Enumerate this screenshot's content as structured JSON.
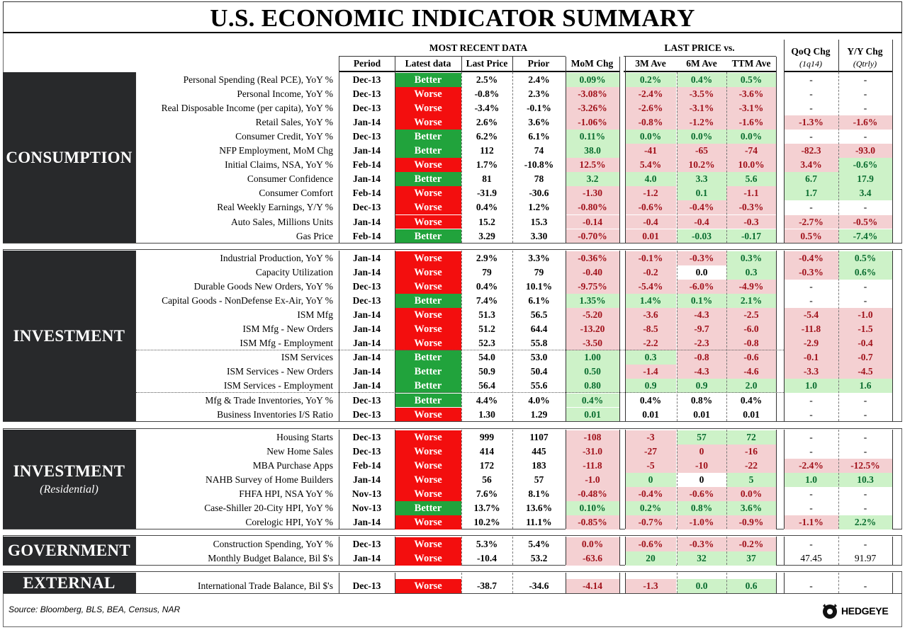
{
  "title": "U.S. ECONOMIC INDICATOR SUMMARY",
  "headers": {
    "most_recent": "MOST RECENT DATA",
    "last_price_vs": "LAST PRICE vs.",
    "period": "Period",
    "latest": "Latest data",
    "last_price": "Last Price",
    "prior": "Prior",
    "mom": "MoM Chg",
    "m3": "3M Ave",
    "m6": "6M Ave",
    "ttm": "TTM Ave",
    "qoq": "QoQ Chg",
    "qoq_sub": "(1q14)",
    "yy": "Y/Y Chg",
    "yy_sub": "(Qtrly)"
  },
  "colors": {
    "better": "#21a33c",
    "worse": "#f30e0e",
    "positive_bg": "#cdf2c8",
    "negative_bg": "#f4d0d2",
    "section_bg": "#28292b"
  },
  "sections": [
    {
      "name": "CONSUMPTION",
      "sub": ""
    },
    {
      "name": "INVESTMENT",
      "sub": ""
    },
    {
      "name": "INVESTMENT",
      "sub": "(Residential)"
    },
    {
      "name": "GOVERNMENT",
      "sub": ""
    },
    {
      "name": "EXTERNAL",
      "sub": ""
    }
  ],
  "rows": [
    {
      "name": "Personal Spending (Real PCE), YoY %",
      "period": "Dec-13",
      "status": "Better",
      "last": "2.5%",
      "prior": "2.4%",
      "mom": "0.09%",
      "m3": "0.2%",
      "m6": "0.4%",
      "ttm": "0.5%",
      "qoq": "-",
      "yy": "-"
    },
    {
      "name": "Personal Income, YoY %",
      "period": "Dec-13",
      "status": "Worse",
      "last": "-0.8%",
      "prior": "2.3%",
      "mom": "-3.08%",
      "m3": "-2.4%",
      "m6": "-3.5%",
      "ttm": "-3.6%",
      "qoq": "-",
      "yy": "-"
    },
    {
      "name": "Real Disposable Income (per capita), YoY %",
      "period": "Dec-13",
      "status": "Worse",
      "last": "-3.4%",
      "prior": "-0.1%",
      "mom": "-3.26%",
      "m3": "-2.6%",
      "m6": "-3.1%",
      "ttm": "-3.1%",
      "qoq": "-",
      "yy": "-"
    },
    {
      "name": "Retail Sales, YoY %",
      "period": "Jan-14",
      "status": "Worse",
      "last": "2.6%",
      "prior": "3.6%",
      "mom": "-1.06%",
      "m3": "-0.8%",
      "m6": "-1.2%",
      "ttm": "-1.6%",
      "qoq": "-1.3%",
      "yy": "-1.6%"
    },
    {
      "name": "Consumer Credit, YoY %",
      "period": "Dec-13",
      "status": "Better",
      "last": "6.2%",
      "prior": "6.1%",
      "mom": "0.11%",
      "m3": "0.0%",
      "m6": "0.0%",
      "ttm": "0.0%",
      "qoq": "-",
      "yy": "-"
    },
    {
      "name": "NFP Employment, MoM Chg",
      "period": "Jan-14",
      "status": "Better",
      "last": "112",
      "prior": "74",
      "mom": "38.0",
      "m3": "-41",
      "m6": "-65",
      "ttm": "-74",
      "qoq": "-82.3",
      "yy": "-93.0"
    },
    {
      "name": "Initial Claims, NSA, YoY %",
      "period": "Feb-14",
      "status": "Worse",
      "last": "1.7%",
      "prior": "-10.8%",
      "mom": "12.5%",
      "m3": "5.4%",
      "m6": "10.2%",
      "ttm": "10.0%",
      "qoq": "3.4%",
      "yy": "-0.6%"
    },
    {
      "name": "Consumer Confidence",
      "period": "Jan-14",
      "status": "Better",
      "last": "81",
      "prior": "78",
      "mom": "3.2",
      "m3": "4.0",
      "m6": "3.3",
      "ttm": "5.6",
      "qoq": "6.7",
      "yy": "17.9"
    },
    {
      "name": "Consumer Comfort",
      "period": "Feb-14",
      "status": "Worse",
      "last": "-31.9",
      "prior": "-30.6",
      "mom": "-1.30",
      "m3": "-1.2",
      "m6": "0.1",
      "ttm": "-1.1",
      "qoq": "1.7",
      "yy": "3.4"
    },
    {
      "name": "Real Weekly Earnings, Y/Y %",
      "period": "Dec-13",
      "status": "Worse",
      "last": "0.4%",
      "prior": "1.2%",
      "mom": "-0.80%",
      "m3": "-0.6%",
      "m6": "-0.4%",
      "ttm": "-0.3%",
      "qoq": "-",
      "yy": "-"
    },
    {
      "name": "Auto Sales, Millions Units",
      "period": "Jan-14",
      "status": "Worse",
      "last": "15.2",
      "prior": "15.3",
      "mom": "-0.14",
      "m3": "-0.4",
      "m6": "-0.4",
      "ttm": "-0.3",
      "qoq": "-2.7%",
      "yy": "-0.5%"
    },
    {
      "name": "Gas Price",
      "period": "Feb-14",
      "status": "Better",
      "last": "3.29",
      "prior": "3.30",
      "mom": "-0.70%",
      "m3": "0.01",
      "m6": "-0.03",
      "ttm": "-0.17",
      "qoq": "0.5%",
      "yy": "-7.4%"
    },
    {
      "name": "Industrial Production, YoY %",
      "period": "Jan-14",
      "status": "Worse",
      "last": "2.9%",
      "prior": "3.3%",
      "mom": "-0.36%",
      "m3": "-0.1%",
      "m6": "-0.3%",
      "ttm": "0.3%",
      "qoq": "-0.4%",
      "yy": "0.5%"
    },
    {
      "name": "Capacity Utilization",
      "period": "Jan-14",
      "status": "Worse",
      "last": "79",
      "prior": "79",
      "mom": "-0.40",
      "m3": "-0.2",
      "m6": "0.0",
      "ttm": "0.3",
      "qoq": "-0.3%",
      "yy": "0.6%"
    },
    {
      "name": "Durable Goods New Orders, YoY %",
      "period": "Dec-13",
      "status": "Worse",
      "last": "0.4%",
      "prior": "10.1%",
      "mom": "-9.75%",
      "m3": "-5.4%",
      "m6": "-6.0%",
      "ttm": "-4.9%",
      "qoq": "-",
      "yy": "-"
    },
    {
      "name": "Capital Goods - NonDefense Ex-Air, YoY %",
      "period": "Dec-13",
      "status": "Better",
      "last": "7.4%",
      "prior": "6.1%",
      "mom": "1.35%",
      "m3": "1.4%",
      "m6": "0.1%",
      "ttm": "2.1%",
      "qoq": "-",
      "yy": "-"
    },
    {
      "name": "ISM Mfg",
      "period": "Jan-14",
      "status": "Worse",
      "last": "51.3",
      "prior": "56.5",
      "mom": "-5.20",
      "m3": "-3.6",
      "m6": "-4.3",
      "ttm": "-2.5",
      "qoq": "-5.4",
      "yy": "-1.0"
    },
    {
      "name": "ISM Mfg - New Orders",
      "period": "Jan-14",
      "status": "Worse",
      "last": "51.2",
      "prior": "64.4",
      "mom": "-13.20",
      "m3": "-8.5",
      "m6": "-9.7",
      "ttm": "-6.0",
      "qoq": "-11.8",
      "yy": "-1.5"
    },
    {
      "name": "ISM Mfg - Employment",
      "period": "Jan-14",
      "status": "Worse",
      "last": "52.3",
      "prior": "55.8",
      "mom": "-3.50",
      "m3": "-2.2",
      "m6": "-2.3",
      "ttm": "-0.8",
      "qoq": "-2.9",
      "yy": "-0.4"
    },
    {
      "name": "ISM Services",
      "period": "Jan-14",
      "status": "Better",
      "last": "54.0",
      "prior": "53.0",
      "mom": "1.00",
      "m3": "0.3",
      "m6": "-0.8",
      "ttm": "-0.6",
      "qoq": "-0.1",
      "yy": "-0.7"
    },
    {
      "name": "ISM Services - New Orders",
      "period": "Jan-14",
      "status": "Better",
      "last": "50.9",
      "prior": "50.4",
      "mom": "0.50",
      "m3": "-1.4",
      "m6": "-4.3",
      "ttm": "-4.6",
      "qoq": "-3.3",
      "yy": "-4.5"
    },
    {
      "name": "ISM Services - Employment",
      "period": "Jan-14",
      "status": "Better",
      "last": "56.4",
      "prior": "55.6",
      "mom": "0.80",
      "m3": "0.9",
      "m6": "0.9",
      "ttm": "2.0",
      "qoq": "1.0",
      "yy": "1.6"
    },
    {
      "name": "Mfg & Trade Inventories, YoY %",
      "period": "Dec-13",
      "status": "Better",
      "last": "4.4%",
      "prior": "4.0%",
      "mom": "0.4%",
      "m3": "0.4%",
      "m6": "0.8%",
      "ttm": "0.4%",
      "qoq": "-",
      "yy": "-"
    },
    {
      "name": "Business Inventories I/S Ratio",
      "period": "Dec-13",
      "status": "Worse",
      "last": "1.30",
      "prior": "1.29",
      "mom": "0.01",
      "m3": "0.01",
      "m6": "0.01",
      "ttm": "0.01",
      "qoq": "-",
      "yy": "-"
    },
    {
      "name": "Housing Starts",
      "period": "Dec-13",
      "status": "Worse",
      "last": "999",
      "prior": "1107",
      "mom": "-108",
      "m3": "-3",
      "m6": "57",
      "ttm": "72",
      "qoq": "-",
      "yy": "-"
    },
    {
      "name": "New Home Sales",
      "period": "Dec-13",
      "status": "Worse",
      "last": "414",
      "prior": "445",
      "mom": "-31.0",
      "m3": "-27",
      "m6": "0",
      "ttm": "-16",
      "qoq": "-",
      "yy": "-"
    },
    {
      "name": "MBA Purchase Apps",
      "period": "Feb-14",
      "status": "Worse",
      "last": "172",
      "prior": "183",
      "mom": "-11.8",
      "m3": "-5",
      "m6": "-10",
      "ttm": "-22",
      "qoq": "-2.4%",
      "yy": "-12.5%"
    },
    {
      "name": "NAHB Survey of Home Builders",
      "period": "Jan-14",
      "status": "Worse",
      "last": "56",
      "prior": "57",
      "mom": "-1.0",
      "m3": "0",
      "m6": "0",
      "ttm": "5",
      "qoq": "1.0",
      "yy": "10.3"
    },
    {
      "name": "FHFA HPI, NSA YoY %",
      "period": "Nov-13",
      "status": "Worse",
      "last": "7.6%",
      "prior": "8.1%",
      "mom": "-0.48%",
      "m3": "-0.4%",
      "m6": "-0.6%",
      "ttm": "0.0%",
      "qoq": "-",
      "yy": "-"
    },
    {
      "name": "Case-Shiller 20-City HPI, YoY %",
      "period": "Nov-13",
      "status": "Better",
      "last": "13.7%",
      "prior": "13.6%",
      "mom": "0.10%",
      "m3": "0.2%",
      "m6": "0.8%",
      "ttm": "3.6%",
      "qoq": "-",
      "yy": "-"
    },
    {
      "name": "Corelogic HPI, YoY %",
      "period": "Jan-14",
      "status": "Worse",
      "last": "10.2%",
      "prior": "11.1%",
      "mom": "-0.85%",
      "m3": "-0.7%",
      "m6": "-1.0%",
      "ttm": "-0.9%",
      "qoq": "-1.1%",
      "yy": "2.2%"
    },
    {
      "name": "Construction Spending, YoY %",
      "period": "Dec-13",
      "status": "Worse",
      "last": "5.3%",
      "prior": "5.4%",
      "mom": "0.0%",
      "m3": "-0.6%",
      "m6": "-0.3%",
      "ttm": "-0.2%",
      "qoq": "-",
      "yy": "-"
    },
    {
      "name": "Monthly Budget Balance, Bil $'s",
      "period": "Jan-14",
      "status": "Worse",
      "last": "-10.4",
      "prior": "53.2",
      "mom": "-63.6",
      "m3": "20",
      "m6": "32",
      "ttm": "37",
      "qoq": "47.45",
      "yy": "91.97"
    },
    {
      "name": "International Trade Balance, Bil $'s",
      "period": "Dec-13",
      "status": "Worse",
      "last": "-38.7",
      "prior": "-34.6",
      "mom": "-4.14",
      "m3": "-1.3",
      "m6": "0.0",
      "ttm": "0.6",
      "qoq": "-",
      "yy": "-"
    }
  ],
  "styles": [
    {
      "mom": "pos",
      "m3": "pos",
      "m6": "pos",
      "ttm": "pos",
      "qoq": "plain",
      "yy": "plain"
    },
    {
      "mom": "neg",
      "m3": "neg",
      "m6": "neg",
      "ttm": "neg",
      "qoq": "plain",
      "yy": "plain"
    },
    {
      "mom": "neg",
      "m3": "neg",
      "m6": "neg",
      "ttm": "neg",
      "qoq": "plain",
      "yy": "plain"
    },
    {
      "mom": "neg",
      "m3": "neg",
      "m6": "neg",
      "ttm": "neg",
      "qoq": "neg",
      "yy": "neg"
    },
    {
      "mom": "pos",
      "m3": "pos",
      "m6": "pos",
      "ttm": "pos",
      "qoq": "plain",
      "yy": "plain"
    },
    {
      "mom": "pos",
      "m3": "neg",
      "m6": "neg",
      "ttm": "neg",
      "qoq": "neg",
      "yy": "neg"
    },
    {
      "mom": "neg",
      "m3": "neg",
      "m6": "neg",
      "ttm": "neg",
      "qoq": "neg",
      "yy": "pos"
    },
    {
      "mom": "pos",
      "m3": "pos",
      "m6": "pos",
      "ttm": "pos",
      "qoq": "pos",
      "yy": "pos"
    },
    {
      "mom": "neg",
      "m3": "neg",
      "m6": "pos",
      "ttm": "neg",
      "qoq": "pos",
      "yy": "pos"
    },
    {
      "mom": "neg",
      "m3": "neg",
      "m6": "neg",
      "ttm": "neg",
      "qoq": "plain",
      "yy": "plain"
    },
    {
      "mom": "neg",
      "m3": "neg",
      "m6": "neg",
      "ttm": "neg",
      "qoq": "neg",
      "yy": "neg"
    },
    {
      "mom": "neg",
      "m3": "neg",
      "m6": "pos",
      "ttm": "pos",
      "qoq": "neg",
      "yy": "pos"
    },
    {
      "mom": "neg",
      "m3": "neg",
      "m6": "neg",
      "ttm": "pos",
      "qoq": "neg",
      "yy": "pos"
    },
    {
      "mom": "neg",
      "m3": "neg",
      "m6": "neu",
      "ttm": "pos",
      "qoq": "neg",
      "yy": "pos"
    },
    {
      "mom": "neg",
      "m3": "neg",
      "m6": "neg",
      "ttm": "neg",
      "qoq": "plain",
      "yy": "plain"
    },
    {
      "mom": "pos",
      "m3": "pos",
      "m6": "pos",
      "ttm": "pos",
      "qoq": "plain",
      "yy": "plain"
    },
    {
      "mom": "neg",
      "m3": "neg",
      "m6": "neg",
      "ttm": "neg",
      "qoq": "neg",
      "yy": "neg"
    },
    {
      "mom": "neg",
      "m3": "neg",
      "m6": "neg",
      "ttm": "neg",
      "qoq": "neg",
      "yy": "neg"
    },
    {
      "mom": "neg",
      "m3": "neg",
      "m6": "neg",
      "ttm": "neg",
      "qoq": "neg",
      "yy": "neg"
    },
    {
      "mom": "pos",
      "m3": "pos",
      "m6": "neg",
      "ttm": "neg",
      "qoq": "neg",
      "yy": "neg"
    },
    {
      "mom": "pos",
      "m3": "neg",
      "m6": "neg",
      "ttm": "neg",
      "qoq": "neg",
      "yy": "neg"
    },
    {
      "mom": "pos",
      "m3": "pos",
      "m6": "pos",
      "ttm": "pos",
      "qoq": "pos",
      "yy": "pos"
    },
    {
      "mom": "pos",
      "m3": "neu",
      "m6": "neu",
      "ttm": "neu",
      "qoq": "plain",
      "yy": "plain"
    },
    {
      "mom": "pos",
      "m3": "neu",
      "m6": "neu",
      "ttm": "neu",
      "qoq": "plain",
      "yy": "plain"
    },
    {
      "mom": "neg",
      "m3": "neg",
      "m6": "pos",
      "ttm": "pos",
      "qoq": "plain",
      "yy": "plain"
    },
    {
      "mom": "neg",
      "m3": "neg",
      "m6": "neg",
      "ttm": "neg",
      "qoq": "plain",
      "yy": "plain"
    },
    {
      "mom": "neg",
      "m3": "neg",
      "m6": "neg",
      "ttm": "neg",
      "qoq": "neg",
      "yy": "neg"
    },
    {
      "mom": "neg",
      "m3": "pos",
      "m6": "neu",
      "ttm": "pos",
      "qoq": "pos",
      "yy": "pos"
    },
    {
      "mom": "neg",
      "m3": "neg",
      "m6": "neg",
      "ttm": "neg",
      "qoq": "plain",
      "yy": "plain"
    },
    {
      "mom": "pos",
      "m3": "pos",
      "m6": "pos",
      "ttm": "pos",
      "qoq": "plain",
      "yy": "plain"
    },
    {
      "mom": "neg",
      "m3": "neg",
      "m6": "neg",
      "ttm": "neg",
      "qoq": "neg",
      "yy": "pos"
    },
    {
      "mom": "neg",
      "m3": "neg",
      "m6": "neg",
      "ttm": "neg",
      "qoq": "plain",
      "yy": "plain"
    },
    {
      "mom": "neg",
      "m3": "pos",
      "m6": "pos",
      "ttm": "pos",
      "qoq": "plain",
      "yy": "plain"
    },
    {
      "mom": "neg",
      "m3": "neg",
      "m6": "pos",
      "ttm": "pos",
      "qoq": "plain",
      "yy": "plain"
    }
  ],
  "source": "Source: Bloomberg, BLS, BEA, Census, NAR",
  "logo_text": "HEDGEYE"
}
